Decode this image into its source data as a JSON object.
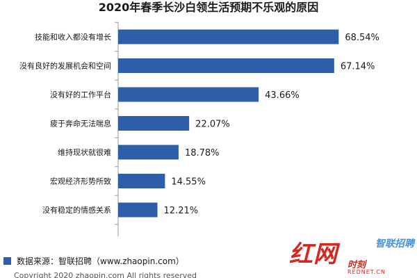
{
  "chart_data": {
    "type": "bar",
    "orientation": "horizontal",
    "title": "2020年春季长沙白领生活预期不乐观的原因",
    "categories": [
      "技能和收入都没有增长",
      "没有良好的发展机会和空间",
      "没有好的工作平台",
      "疲于奔命无法喘息",
      "维持现状就很难",
      "宏观经济形势所致",
      "没有稳定的情感关系"
    ],
    "values": [
      68.54,
      67.14,
      43.66,
      22.07,
      18.78,
      14.55,
      12.21
    ],
    "value_labels": [
      "68.54%",
      "67.14%",
      "43.66%",
      "22.07%",
      "18.78%",
      "14.55%",
      "12.21%"
    ],
    "bar_color": "#2e5ea8",
    "xlim": [
      0,
      100
    ],
    "grid": false,
    "legend": "none"
  },
  "source": {
    "text": "数据来源：智联招聘（www.zhaopin.com）",
    "color": "#2e5ea8"
  },
  "copyright": {
    "text": "Copyright 2020 zhaopin.com All rights reserved"
  },
  "watermark": {
    "hongwang": "红网",
    "zhilian": "智联招聘",
    "sub": "时刻",
    "domain": "REDNET.CN"
  }
}
